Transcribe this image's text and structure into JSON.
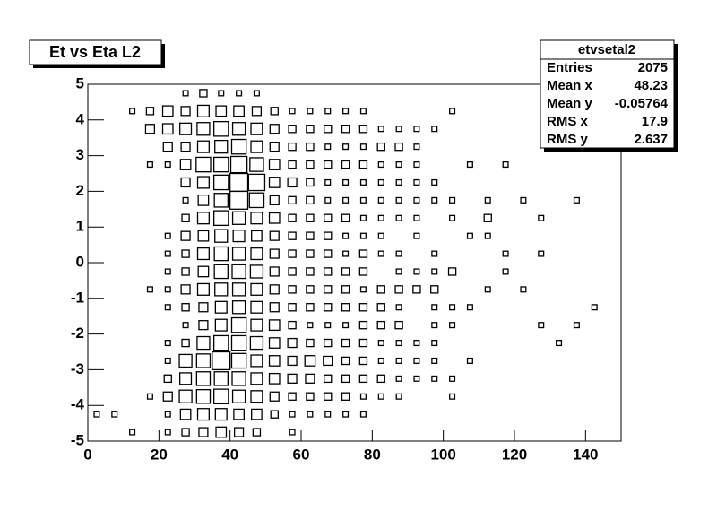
{
  "chart_data": {
    "type": "box2d",
    "title": "Et vs Eta L2",
    "stats": {
      "title": "etvsetal2",
      "rows": [
        {
          "label": "Entries",
          "value": 2075
        },
        {
          "label": "Mean x",
          "value": 48.23
        },
        {
          "label": "Mean y",
          "value": -0.05764
        },
        {
          "label": "RMS x",
          "value": 17.9
        },
        {
          "label": "RMS y",
          "value": 2.637
        }
      ]
    },
    "xlim": [
      0,
      150
    ],
    "ylim": [
      -5,
      5
    ],
    "xticks": [
      0,
      20,
      40,
      60,
      80,
      100,
      120,
      140
    ],
    "yticks": [
      -5,
      -4,
      -3,
      -2,
      -1,
      0,
      1,
      2,
      3,
      4,
      5
    ],
    "color": "#000000",
    "x": [
      2.5,
      7.5,
      12.5,
      17.5,
      22.5,
      27.5,
      32.5,
      37.5,
      42.5,
      47.5,
      52.5,
      57.5,
      62.5,
      67.5,
      72.5,
      77.5,
      82.5,
      87.5,
      92.5,
      97.5,
      102.5,
      107.5,
      112.5,
      117.5,
      122.5,
      127.5,
      132.5,
      137.5,
      142.5
    ],
    "y": [
      4.75,
      4.25,
      3.75,
      3.25,
      2.75,
      2.25,
      1.75,
      1.25,
      0.75,
      0.25,
      -0.25,
      -0.75,
      -1.25,
      -1.75,
      -2.25,
      -2.75,
      -3.25,
      -3.75,
      -4.25,
      -4.75
    ],
    "counts": [
      [
        0,
        0,
        0,
        0,
        0,
        1,
        2,
        1,
        1,
        1,
        0,
        0,
        0,
        0,
        0,
        0,
        0,
        0,
        0,
        0,
        0,
        0,
        0,
        0,
        0,
        0,
        0,
        0,
        0
      ],
      [
        0,
        0,
        1,
        2,
        4,
        3,
        5,
        4,
        4,
        3,
        2,
        1,
        1,
        1,
        1,
        1,
        0,
        0,
        0,
        0,
        1,
        0,
        0,
        0,
        0,
        0,
        0,
        0,
        0
      ],
      [
        0,
        0,
        0,
        3,
        4,
        5,
        6,
        8,
        6,
        5,
        3,
        2,
        2,
        2,
        2,
        2,
        1,
        1,
        1,
        1,
        0,
        0,
        0,
        0,
        0,
        0,
        0,
        0,
        0
      ],
      [
        0,
        0,
        0,
        0,
        3,
        3,
        5,
        6,
        8,
        5,
        3,
        2,
        2,
        1,
        1,
        1,
        2,
        2,
        1,
        0,
        0,
        0,
        0,
        0,
        0,
        0,
        0,
        0,
        0
      ],
      [
        0,
        0,
        0,
        1,
        1,
        4,
        8,
        8,
        10,
        7,
        4,
        2,
        2,
        2,
        2,
        2,
        1,
        1,
        1,
        0,
        0,
        1,
        0,
        1,
        0,
        0,
        0,
        0,
        0
      ],
      [
        0,
        0,
        0,
        0,
        0,
        3,
        5,
        8,
        12,
        10,
        4,
        3,
        2,
        1,
        1,
        1,
        1,
        1,
        1,
        1,
        0,
        0,
        0,
        0,
        0,
        0,
        0,
        0,
        0
      ],
      [
        0,
        0,
        0,
        0,
        0,
        1,
        4,
        7,
        12,
        8,
        3,
        2,
        2,
        1,
        1,
        1,
        1,
        1,
        1,
        1,
        1,
        0,
        1,
        0,
        1,
        0,
        0,
        1,
        0
      ],
      [
        0,
        0,
        0,
        0,
        0,
        2,
        5,
        8,
        6,
        5,
        4,
        2,
        2,
        2,
        2,
        1,
        1,
        1,
        1,
        0,
        1,
        0,
        2,
        0,
        0,
        1,
        0,
        0,
        0
      ],
      [
        0,
        0,
        0,
        0,
        1,
        3,
        4,
        6,
        5,
        4,
        3,
        2,
        2,
        2,
        1,
        1,
        1,
        0,
        1,
        0,
        0,
        1,
        1,
        0,
        0,
        0,
        0,
        0,
        0
      ],
      [
        0,
        0,
        0,
        0,
        1,
        2,
        5,
        7,
        6,
        5,
        3,
        2,
        2,
        2,
        1,
        2,
        1,
        1,
        0,
        1,
        0,
        0,
        0,
        1,
        0,
        1,
        0,
        0,
        0
      ],
      [
        0,
        0,
        0,
        0,
        1,
        2,
        4,
        7,
        7,
        6,
        3,
        2,
        2,
        2,
        2,
        2,
        0,
        1,
        1,
        1,
        2,
        0,
        0,
        1,
        0,
        0,
        0,
        0,
        0
      ],
      [
        0,
        0,
        0,
        1,
        1,
        3,
        5,
        6,
        6,
        5,
        3,
        2,
        2,
        2,
        2,
        1,
        2,
        2,
        2,
        2,
        0,
        0,
        1,
        0,
        1,
        0,
        0,
        0,
        0
      ],
      [
        0,
        0,
        0,
        0,
        1,
        2,
        3,
        5,
        6,
        5,
        3,
        2,
        2,
        2,
        2,
        2,
        2,
        1,
        0,
        1,
        1,
        1,
        0,
        0,
        0,
        0,
        0,
        0,
        1
      ],
      [
        0,
        0,
        0,
        0,
        0,
        1,
        3,
        5,
        8,
        5,
        4,
        2,
        1,
        1,
        1,
        2,
        2,
        2,
        0,
        1,
        1,
        0,
        0,
        0,
        0,
        1,
        0,
        1,
        0
      ],
      [
        0,
        0,
        0,
        0,
        1,
        2,
        6,
        8,
        8,
        6,
        4,
        3,
        2,
        2,
        2,
        2,
        1,
        1,
        1,
        1,
        0,
        0,
        0,
        0,
        0,
        0,
        1,
        0,
        0
      ],
      [
        0,
        0,
        0,
        0,
        1,
        6,
        7,
        12,
        8,
        5,
        4,
        3,
        4,
        3,
        2,
        2,
        1,
        1,
        1,
        1,
        0,
        1,
        0,
        0,
        0,
        0,
        0,
        0,
        0
      ],
      [
        0,
        0,
        0,
        0,
        2,
        5,
        7,
        7,
        7,
        5,
        4,
        3,
        3,
        2,
        2,
        2,
        2,
        1,
        1,
        1,
        1,
        0,
        0,
        0,
        0,
        0,
        0,
        0,
        0
      ],
      [
        0,
        0,
        0,
        1,
        3,
        6,
        7,
        8,
        6,
        5,
        3,
        2,
        2,
        2,
        2,
        1,
        1,
        1,
        0,
        0,
        1,
        0,
        0,
        0,
        0,
        0,
        0,
        0,
        0
      ],
      [
        1,
        1,
        0,
        0,
        1,
        4,
        5,
        5,
        4,
        4,
        2,
        1,
        1,
        1,
        1,
        1,
        0,
        0,
        0,
        0,
        0,
        0,
        0,
        0,
        0,
        0,
        0,
        0,
        0
      ],
      [
        0,
        0,
        1,
        0,
        1,
        2,
        3,
        4,
        3,
        2,
        0,
        1,
        0,
        0,
        0,
        0,
        0,
        0,
        0,
        0,
        0,
        0,
        0,
        0,
        0,
        0,
        0,
        0,
        0
      ]
    ]
  }
}
